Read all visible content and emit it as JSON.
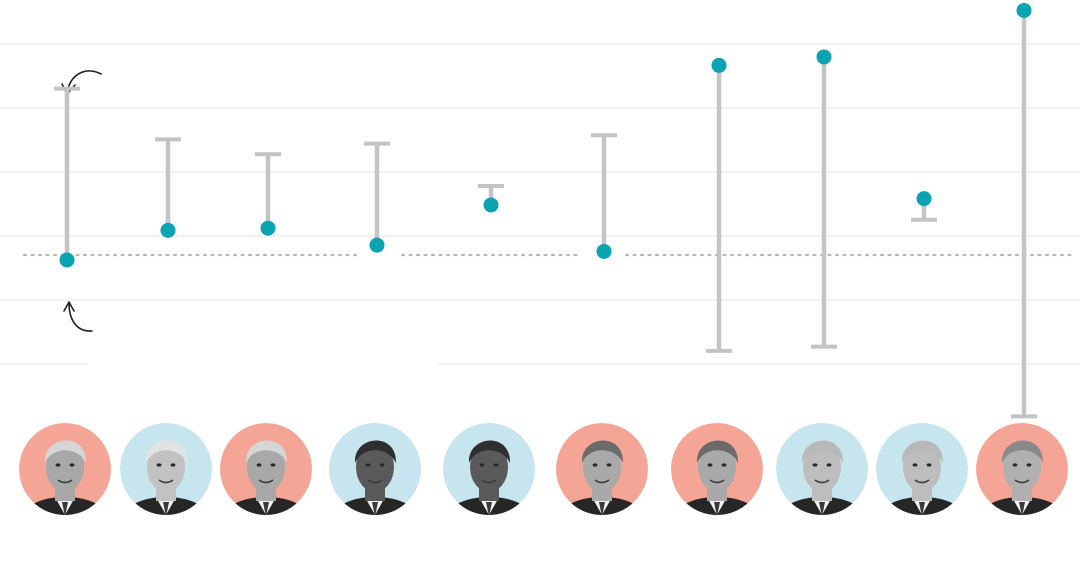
{
  "chart_data": {
    "type": "range-dot",
    "grid": true,
    "y_reference_line": "dotted",
    "columns": [
      {
        "portrait": "trump",
        "background": "#f4a596",
        "start": 84.5,
        "end": 44
      },
      {
        "portrait": "biden",
        "background": "#c7e5ee",
        "start": 72.5,
        "end": 51
      },
      {
        "portrait": "trump",
        "background": "#f4a596",
        "start": 69,
        "end": 51.5
      },
      {
        "portrait": "obama",
        "background": "#c7e5ee",
        "start": 71.5,
        "end": 47.5
      },
      {
        "portrait": "obama",
        "background": "#c7e5ee",
        "start": 61.5,
        "end": 57
      },
      {
        "portrait": "bush",
        "background": "#f4a596",
        "start": 73.5,
        "end": 46
      },
      {
        "portrait": "bush",
        "background": "#f4a596",
        "start": 22.5,
        "end": 90
      },
      {
        "portrait": "clinton",
        "background": "#c7e5ee",
        "start": 23.5,
        "end": 92
      },
      {
        "portrait": "clinton",
        "background": "#c7e5ee",
        "start": 53.5,
        "end": 58.5
      },
      {
        "portrait": "hwbush",
        "background": "#f4a596",
        "start": 7,
        "end": 103
      }
    ],
    "ylim": [
      0,
      105
    ],
    "colors": {
      "dot": "#0aa3b2",
      "range": "#c4c4c4",
      "gridline": "#e6e6e6",
      "reference_line": "#b9b9b9",
      "republican_bg": "#f4a596",
      "democrat_bg": "#c7e5ee"
    }
  }
}
